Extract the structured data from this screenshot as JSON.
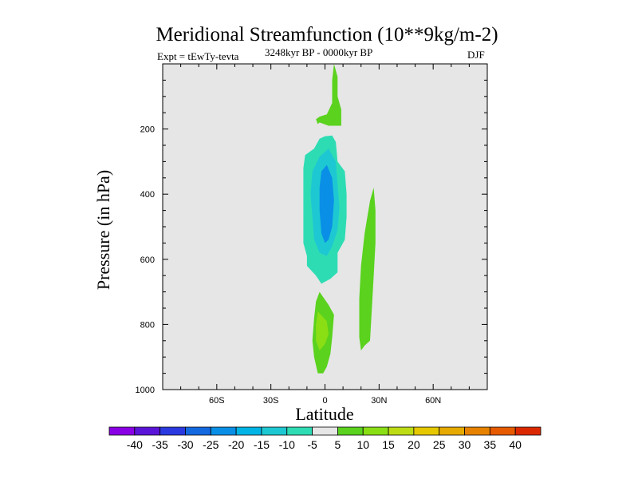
{
  "chart_data": {
    "type": "contour",
    "title": "Meridional Streamfunction (10**9kg/m-2)",
    "experiment": "Expt = tEwTy-tevta",
    "period": "3248kyr BP - 0000kyr BP",
    "season": "DJF",
    "xlabel": "Latitude",
    "ylabel": "Pressure (in hPa)",
    "xlim": [
      -90,
      90
    ],
    "ylim": [
      1000,
      0
    ],
    "x_ticks": [
      {
        "value": -60,
        "label": "60S"
      },
      {
        "value": -30,
        "label": "30S"
      },
      {
        "value": 0,
        "label": "0"
      },
      {
        "value": 30,
        "label": "30N"
      },
      {
        "value": 60,
        "label": "60N"
      }
    ],
    "y_ticks": [
      {
        "value": 200,
        "label": "200"
      },
      {
        "value": 400,
        "label": "400"
      },
      {
        "value": 600,
        "label": "600"
      },
      {
        "value": 800,
        "label": "800"
      },
      {
        "value": 1000,
        "label": "1000"
      }
    ],
    "background_color": "#e6e6e6",
    "colorbar": {
      "labels": [
        "-40",
        "-35",
        "-30",
        "-25",
        "-20",
        "-15",
        "-10",
        "-5",
        "5",
        "10",
        "15",
        "20",
        "25",
        "30",
        "35",
        "40"
      ],
      "colors": [
        "#8a00e6",
        "#5a14d8",
        "#2a3ae0",
        "#1468e0",
        "#0a8fe6",
        "#00b4e6",
        "#1ec8d2",
        "#2edcb4",
        "#e6e6e6",
        "#5ad21e",
        "#8ade14",
        "#bedc14",
        "#e6c800",
        "#e6aa00",
        "#e68200",
        "#e65a00",
        "#dc2800"
      ]
    },
    "regions": [
      {
        "name": "neg-5-upper-cell",
        "color": "#2edcb4",
        "points": [
          [
            4,
            220
          ],
          [
            6,
            240
          ],
          [
            7,
            300
          ],
          [
            11,
            330
          ],
          [
            12,
            400
          ],
          [
            12,
            470
          ],
          [
            11,
            540
          ],
          [
            7,
            580
          ],
          [
            7,
            640
          ],
          [
            3,
            660
          ],
          [
            -2,
            675
          ],
          [
            -5,
            650
          ],
          [
            -10,
            620
          ],
          [
            -10,
            590
          ],
          [
            -12,
            550
          ],
          [
            -12,
            420
          ],
          [
            -12,
            320
          ],
          [
            -11,
            280
          ],
          [
            -6,
            260
          ],
          [
            -3,
            230
          ],
          [
            0,
            222
          ]
        ]
      },
      {
        "name": "neg-10-upper-cell",
        "color": "#1ec8d2",
        "points": [
          [
            2,
            260
          ],
          [
            6,
            300
          ],
          [
            7,
            370
          ],
          [
            8,
            440
          ],
          [
            7,
            510
          ],
          [
            4,
            560
          ],
          [
            1,
            590
          ],
          [
            -3,
            580
          ],
          [
            -6,
            540
          ],
          [
            -7,
            470
          ],
          [
            -8,
            400
          ],
          [
            -7,
            330
          ],
          [
            -3,
            285
          ]
        ]
      },
      {
        "name": "neg-15-core",
        "color": "#0a8fe6",
        "points": [
          [
            1,
            310
          ],
          [
            4,
            350
          ],
          [
            5,
            420
          ],
          [
            4,
            500
          ],
          [
            2,
            540
          ],
          [
            0,
            550
          ],
          [
            -2,
            520
          ],
          [
            -3,
            450
          ],
          [
            -3,
            380
          ],
          [
            -2,
            330
          ]
        ]
      },
      {
        "name": "pos-5-stratosphere",
        "color": "#5ad21e",
        "points": [
          [
            5,
            0
          ],
          [
            7,
            40
          ],
          [
            7,
            100
          ],
          [
            9,
            140
          ],
          [
            9,
            190
          ],
          [
            2,
            190
          ],
          [
            -3,
            180
          ],
          [
            -4,
            185
          ],
          [
            -5,
            170
          ],
          [
            -3,
            162
          ],
          [
            1,
            155
          ],
          [
            4,
            120
          ],
          [
            4,
            50
          ]
        ]
      },
      {
        "name": "pos-5-nh-column",
        "color": "#5ad21e",
        "points": [
          [
            27,
            380
          ],
          [
            28,
            450
          ],
          [
            28,
            550
          ],
          [
            27,
            650
          ],
          [
            26,
            750
          ],
          [
            25,
            850
          ],
          [
            22,
            865
          ],
          [
            20,
            880
          ],
          [
            19,
            840
          ],
          [
            19,
            720
          ],
          [
            20,
            620
          ],
          [
            22,
            520
          ],
          [
            25,
            420
          ]
        ]
      },
      {
        "name": "pos-5-lower-cell",
        "color": "#5ad21e",
        "points": [
          [
            -3,
            700
          ],
          [
            2,
            740
          ],
          [
            5,
            770
          ],
          [
            4,
            840
          ],
          [
            3,
            890
          ],
          [
            1,
            930
          ],
          [
            -1,
            950
          ],
          [
            -4,
            950
          ],
          [
            -6,
            900
          ],
          [
            -7,
            850
          ],
          [
            -6,
            780
          ],
          [
            -5,
            730
          ]
        ]
      },
      {
        "name": "pos-10-lower-core",
        "color": "#8ade14",
        "points": [
          [
            -4,
            760
          ],
          [
            1,
            790
          ],
          [
            2,
            830
          ],
          [
            0,
            860
          ],
          [
            -3,
            880
          ],
          [
            -5,
            850
          ],
          [
            -5,
            800
          ]
        ]
      }
    ]
  }
}
